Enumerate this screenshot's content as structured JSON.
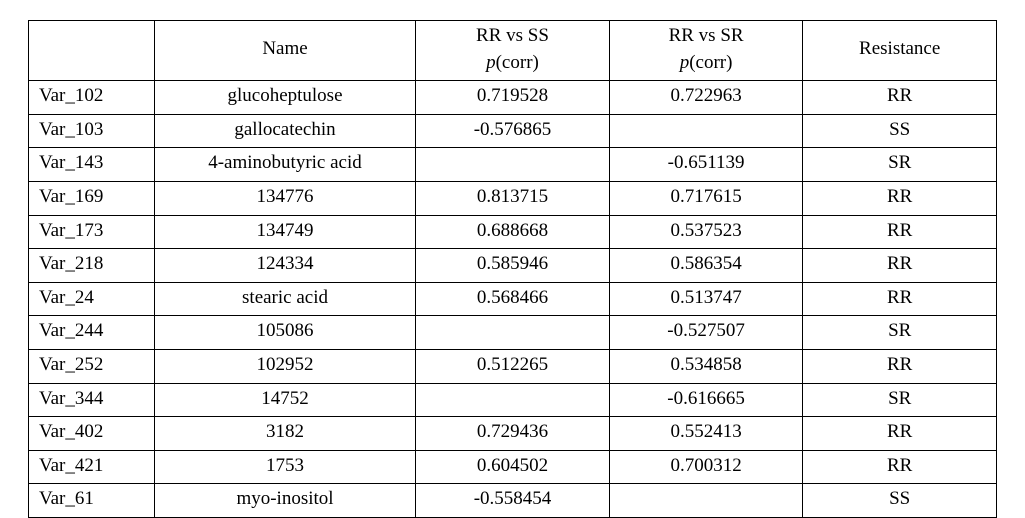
{
  "table": {
    "type": "table",
    "background_color": "#ffffff",
    "border_color": "#000000",
    "font_family": "Book Antiqua / Palatino serif",
    "font_size_pt": 14,
    "text_color": "#000000",
    "column_widths_pct": [
      13,
      27,
      20,
      20,
      20
    ],
    "column_align": [
      "left",
      "center",
      "center",
      "center",
      "center"
    ],
    "header": {
      "var": "",
      "name": "Name",
      "rr_ss_top": "RR vs SS",
      "rr_sr_top": "RR vs SR",
      "pcorr_label_prefix": "p",
      "pcorr_label_suffix": "(corr)",
      "resistance": "Resistance"
    },
    "rows": [
      {
        "var": "Var_102",
        "name": "glucoheptulose",
        "rr_ss": "0.719528",
        "rr_sr": "0.722963",
        "res": "RR"
      },
      {
        "var": "Var_103",
        "name": "gallocatechin",
        "rr_ss": "-0.576865",
        "rr_sr": "",
        "res": "SS"
      },
      {
        "var": "Var_143",
        "name": "4-aminobutyric acid",
        "rr_ss": "",
        "rr_sr": "-0.651139",
        "res": "SR"
      },
      {
        "var": "Var_169",
        "name": "134776",
        "rr_ss": "0.813715",
        "rr_sr": "0.717615",
        "res": "RR"
      },
      {
        "var": "Var_173",
        "name": "134749",
        "rr_ss": "0.688668",
        "rr_sr": "0.537523",
        "res": "RR"
      },
      {
        "var": "Var_218",
        "name": "124334",
        "rr_ss": "0.585946",
        "rr_sr": "0.586354",
        "res": "RR"
      },
      {
        "var": "Var_24",
        "name": "stearic acid",
        "rr_ss": "0.568466",
        "rr_sr": "0.513747",
        "res": "RR"
      },
      {
        "var": "Var_244",
        "name": "105086",
        "rr_ss": "",
        "rr_sr": "-0.527507",
        "res": "SR"
      },
      {
        "var": "Var_252",
        "name": "102952",
        "rr_ss": "0.512265",
        "rr_sr": "0.534858",
        "res": "RR"
      },
      {
        "var": "Var_344",
        "name": "14752",
        "rr_ss": "",
        "rr_sr": "-0.616665",
        "res": "SR"
      },
      {
        "var": "Var_402",
        "name": "3182",
        "rr_ss": "0.729436",
        "rr_sr": "0.552413",
        "res": "RR"
      },
      {
        "var": "Var_421",
        "name": "1753",
        "rr_ss": "0.604502",
        "rr_sr": "0.700312",
        "res": "RR"
      },
      {
        "var": "Var_61",
        "name": "myo-inositol",
        "rr_ss": "-0.558454",
        "rr_sr": "",
        "res": "SS"
      }
    ]
  }
}
